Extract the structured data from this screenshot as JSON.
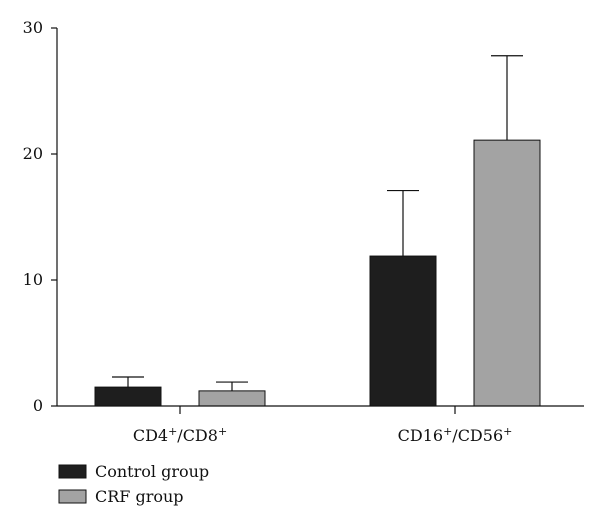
{
  "chart_data": {
    "type": "bar",
    "categories": [
      {
        "base1": "CD4",
        "sup1": "+",
        "sep": "/",
        "base2": "CD8",
        "sup2": "+"
      },
      {
        "base1": "CD16",
        "sup1": "+",
        "sep": "/",
        "base2": "CD56",
        "sup2": "+"
      }
    ],
    "series": [
      {
        "name": "Control group",
        "color": "#1e1e1e",
        "values": [
          1.5,
          11.9
        ],
        "errors": [
          0.8,
          5.2
        ]
      },
      {
        "name": "CRF group",
        "color": "#a3a3a3",
        "values": [
          1.2,
          21.1
        ],
        "errors": [
          0.7,
          6.7
        ]
      }
    ],
    "yticks": [
      "0",
      "10",
      "20",
      "30"
    ],
    "ylim": [
      0,
      30
    ],
    "title": "",
    "xlabel": "",
    "ylabel": "",
    "legend_position": "bottom-left"
  }
}
